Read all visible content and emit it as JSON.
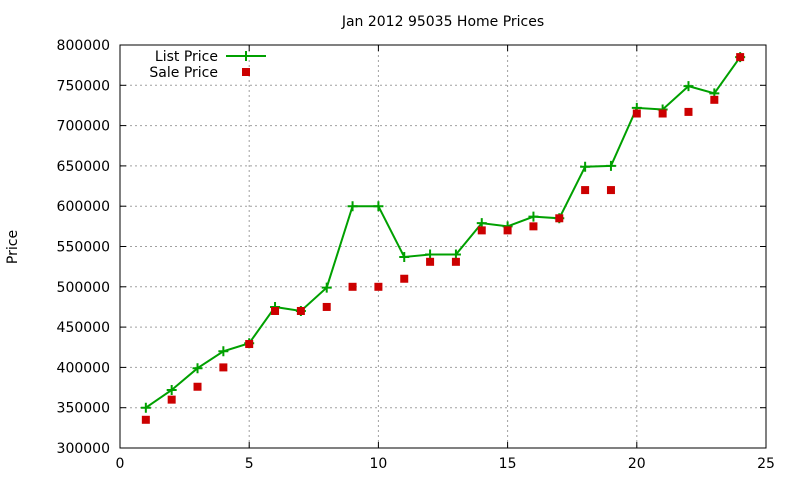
{
  "chart_data": {
    "type": "line",
    "title": "Jan 2012 95035 Home Prices",
    "xlabel": "",
    "ylabel": "Price",
    "xlim": [
      0,
      25
    ],
    "ylim": [
      300000,
      800000
    ],
    "xticks": [
      0,
      5,
      10,
      15,
      20,
      25
    ],
    "yticks": [
      300000,
      350000,
      400000,
      450000,
      500000,
      550000,
      600000,
      650000,
      700000,
      750000,
      800000
    ],
    "grid": true,
    "legend": "top-left",
    "series": [
      {
        "name": "List Price",
        "style": "line+points",
        "marker": "plus",
        "color": "#00a000",
        "x": [
          1,
          2,
          3,
          4,
          5,
          6,
          7,
          8,
          9,
          10,
          11,
          12,
          13,
          14,
          15,
          16,
          17,
          18,
          19,
          20,
          21,
          22,
          23,
          24
        ],
        "y": [
          350000,
          372000,
          399000,
          420000,
          430000,
          475000,
          470000,
          499000,
          600000,
          600000,
          537000,
          540000,
          540000,
          579000,
          575000,
          587000,
          585000,
          649000,
          650000,
          722000,
          720000,
          749000,
          740000,
          785000
        ]
      },
      {
        "name": "Sale Price",
        "style": "points",
        "marker": "square",
        "color": "#cc0000",
        "x": [
          1,
          2,
          3,
          4,
          5,
          6,
          7,
          8,
          9,
          10,
          11,
          12,
          13,
          14,
          15,
          16,
          17,
          18,
          19,
          20,
          21,
          22,
          23,
          24
        ],
        "y": [
          335000,
          360000,
          376000,
          400000,
          429000,
          470000,
          470000,
          475000,
          500000,
          500000,
          510000,
          531000,
          531000,
          570000,
          570000,
          575000,
          585000,
          620000,
          620000,
          715000,
          715000,
          717000,
          732000,
          785000
        ]
      }
    ]
  }
}
